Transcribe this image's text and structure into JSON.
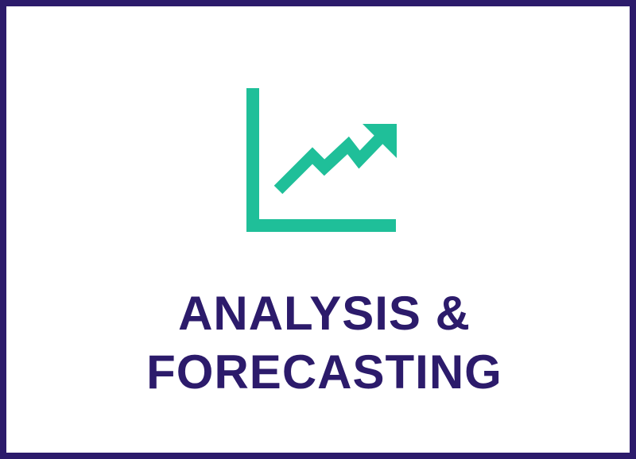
{
  "card": {
    "title_line_1": "ANALYSIS &",
    "title_line_2": "FORECASTING",
    "icon": "trending-up-chart-icon"
  },
  "colors": {
    "border": "#2c1b6b",
    "title": "#2c1b6b",
    "icon": "#1fbf99",
    "background": "#ffffff"
  }
}
